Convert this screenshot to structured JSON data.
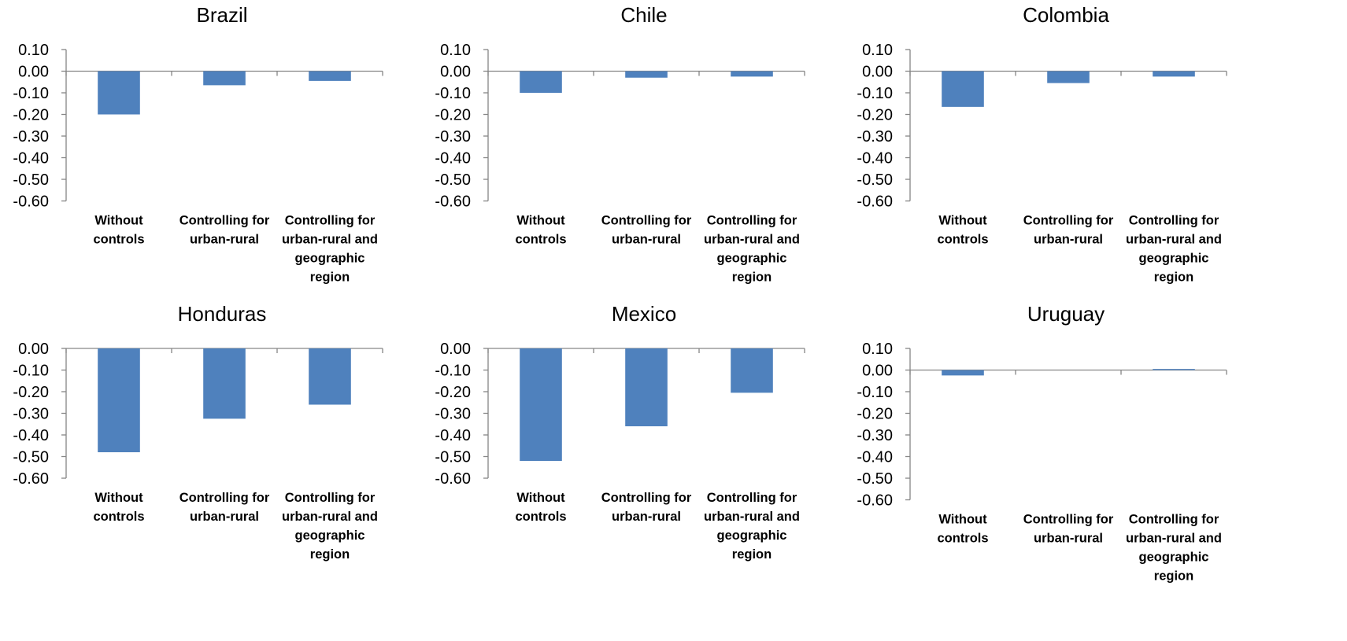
{
  "chart_data": [
    {
      "type": "bar",
      "title": "Brazil",
      "categories": [
        [
          "Without",
          "controls"
        ],
        [
          "Controlling for",
          "urban-rural"
        ],
        [
          "Controlling for",
          "urban-rural and",
          "geographic",
          "region"
        ]
      ],
      "values": [
        -0.2,
        -0.065,
        -0.045
      ],
      "ylim": [
        -0.6,
        0.1
      ],
      "yticks": [
        "0.10",
        "0.00",
        "-0.10",
        "-0.20",
        "-0.30",
        "-0.40",
        "-0.50",
        "-0.60"
      ],
      "color": "#4f81bd",
      "grid": false,
      "legend": "none"
    },
    {
      "type": "bar",
      "title": "Chile",
      "categories": [
        [
          "Without",
          "controls"
        ],
        [
          "Controlling for",
          "urban-rural"
        ],
        [
          "Controlling for",
          "urban-rural and",
          "geographic",
          "region"
        ]
      ],
      "values": [
        -0.1,
        -0.03,
        -0.025
      ],
      "ylim": [
        -0.6,
        0.1
      ],
      "yticks": [
        "0.10",
        "0.00",
        "-0.10",
        "-0.20",
        "-0.30",
        "-0.40",
        "-0.50",
        "-0.60"
      ],
      "color": "#4f81bd",
      "grid": false,
      "legend": "none"
    },
    {
      "type": "bar",
      "title": "Colombia",
      "categories": [
        [
          "Without",
          "controls"
        ],
        [
          "Controlling for",
          "urban-rural"
        ],
        [
          "Controlling for",
          "urban-rural and",
          "geographic",
          "region"
        ]
      ],
      "values": [
        -0.165,
        -0.055,
        -0.025
      ],
      "ylim": [
        -0.6,
        0.1
      ],
      "yticks": [
        "0.10",
        "0.00",
        "-0.10",
        "-0.20",
        "-0.30",
        "-0.40",
        "-0.50",
        "-0.60"
      ],
      "color": "#4f81bd",
      "grid": false,
      "legend": "none"
    },
    {
      "type": "bar",
      "title": "Honduras",
      "categories": [
        [
          "Without",
          "controls"
        ],
        [
          "Controlling for",
          "urban-rural"
        ],
        [
          "Controlling for",
          "urban-rural and",
          "geographic",
          "region"
        ]
      ],
      "values": [
        -0.48,
        -0.325,
        -0.26
      ],
      "ylim": [
        -0.6,
        0.0
      ],
      "yticks": [
        "0.00",
        "-0.10",
        "-0.20",
        "-0.30",
        "-0.40",
        "-0.50",
        "-0.60"
      ],
      "color": "#4f81bd",
      "grid": false,
      "legend": "none"
    },
    {
      "type": "bar",
      "title": "Mexico",
      "categories": [
        [
          "Without",
          "controls"
        ],
        [
          "Controlling for",
          "urban-rural"
        ],
        [
          "Controlling for",
          "urban-rural and",
          "geographic",
          "region"
        ]
      ],
      "values": [
        -0.52,
        -0.36,
        -0.205
      ],
      "ylim": [
        -0.6,
        0.0
      ],
      "yticks": [
        "0.00",
        "-0.10",
        "-0.20",
        "-0.30",
        "-0.40",
        "-0.50",
        "-0.60"
      ],
      "color": "#4f81bd",
      "grid": false,
      "legend": "none"
    },
    {
      "type": "bar",
      "title": "Uruguay",
      "categories": [
        [
          "Without",
          "controls"
        ],
        [
          "Controlling for",
          "urban-rural"
        ],
        [
          "Controlling for",
          "urban-rural and",
          "geographic",
          "region"
        ]
      ],
      "values": [
        -0.025,
        0.0,
        0.005
      ],
      "ylim": [
        -0.6,
        0.1
      ],
      "yticks": [
        "0.10",
        "0.00",
        "-0.10",
        "-0.20",
        "-0.30",
        "-0.40",
        "-0.50",
        "-0.60"
      ],
      "color": "#4f81bd",
      "grid": false,
      "legend": "none"
    }
  ]
}
